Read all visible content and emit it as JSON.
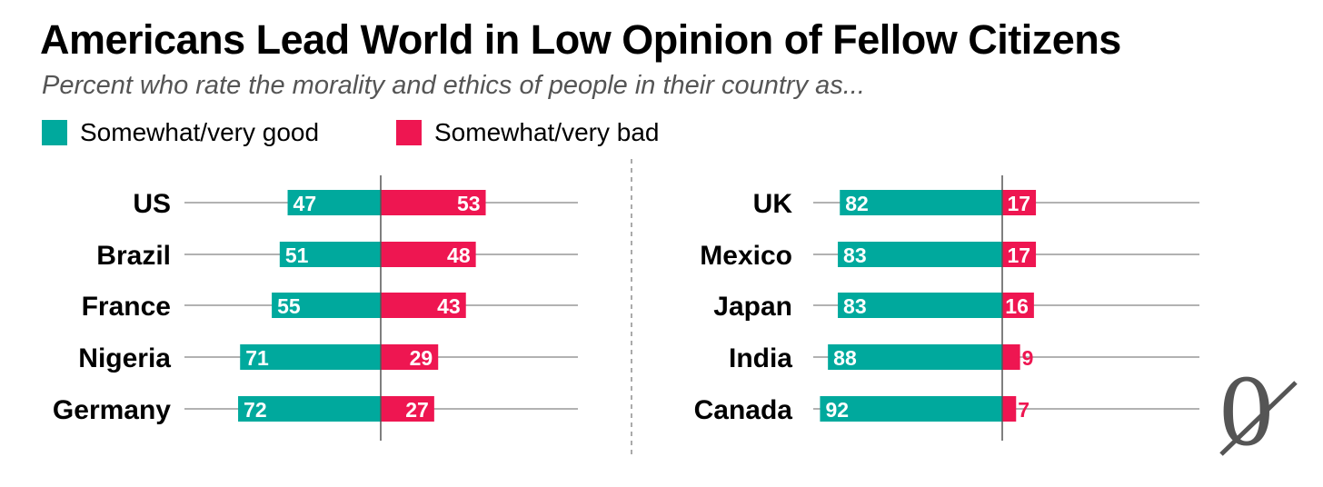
{
  "title": "Americans Lead World in Low Opinion of Fellow Citizens",
  "subtitle": "Percent who rate the morality and ethics of people in their country as...",
  "logo": "0",
  "colors": {
    "good": "#00A99D",
    "bad": "#EE1651",
    "grid": "#999999",
    "axis": "#555555"
  },
  "chart_data": [
    {
      "type": "bar",
      "orientation": "horizontal-diverging",
      "categories": [
        "US",
        "Brazil",
        "France",
        "Nigeria",
        "Germany"
      ],
      "series": [
        {
          "name": "Somewhat/very good",
          "values": [
            47,
            51,
            55,
            71,
            72
          ]
        },
        {
          "name": "Somewhat/very bad",
          "values": [
            53,
            48,
            43,
            29,
            27
          ]
        }
      ],
      "xlim": [
        -100,
        100
      ]
    },
    {
      "type": "bar",
      "orientation": "horizontal-diverging",
      "categories": [
        "UK",
        "Mexico",
        "Japan",
        "India",
        "Canada"
      ],
      "series": [
        {
          "name": "Somewhat/very good",
          "values": [
            82,
            83,
            83,
            88,
            92
          ]
        },
        {
          "name": "Somewhat/very bad",
          "values": [
            17,
            17,
            16,
            9,
            7
          ]
        }
      ],
      "xlim": [
        -100,
        100
      ]
    }
  ],
  "legend": [
    {
      "label": "Somewhat/very good"
    },
    {
      "label": "Somewhat/very bad"
    }
  ]
}
